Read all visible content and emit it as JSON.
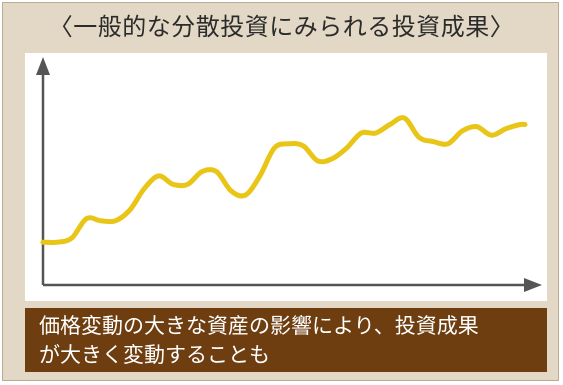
{
  "title": "〈一般的な分散投資にみられる投資成果〉",
  "caption": {
    "line1": "価格変動の大きな資産の影響により、投資成果",
    "line2": "が大きく変動することも"
  },
  "colors": {
    "panel_bg": "#e3d8c6",
    "line": "#e8c516",
    "axis": "#555555",
    "caption_bg": "#6e3e10"
  },
  "chart_data": {
    "type": "line",
    "title": "〈一般的な分散投資にみられる投資成果〉",
    "xlabel": "",
    "ylabel": "",
    "grid": false,
    "legend": "none",
    "axis_ticks": false,
    "xlim": [
      0,
      100
    ],
    "ylim": [
      0,
      100
    ],
    "series": [
      {
        "x": [
          0,
          3,
          6,
          9,
          12,
          15,
          18,
          21,
          24,
          27,
          30,
          33,
          36,
          39,
          42,
          45,
          48,
          51,
          54,
          57,
          60,
          63,
          66,
          69,
          72,
          75,
          78,
          81,
          84,
          87,
          90,
          93,
          96,
          99,
          100
        ],
        "values": [
          20,
          20,
          22,
          31,
          30,
          30,
          35,
          45,
          51,
          47,
          47,
          53,
          53,
          44,
          42,
          51,
          64,
          66,
          65,
          58,
          59,
          64,
          71,
          71,
          75,
          78,
          69,
          67,
          66,
          72,
          74,
          70,
          73,
          75,
          75
        ]
      }
    ]
  }
}
